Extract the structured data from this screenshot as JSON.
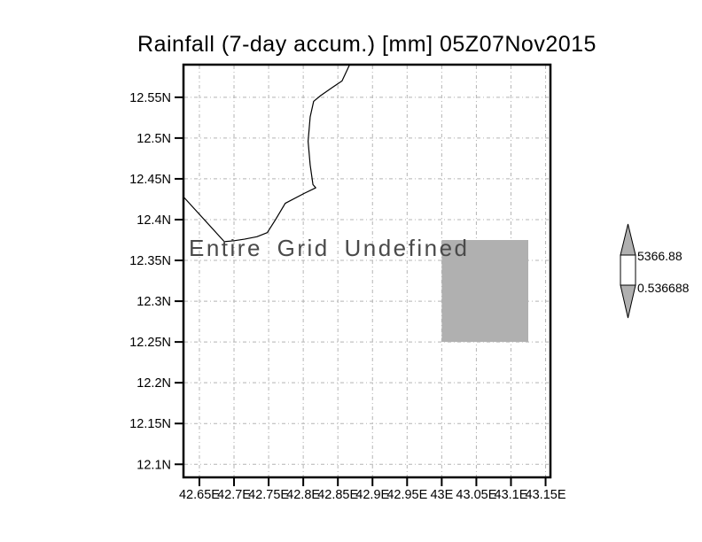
{
  "chart_data": {
    "type": "heatmap",
    "title": "Rainfall (7-day accum.) [mm] 05Z07Nov2015",
    "xlabel": "",
    "ylabel": "",
    "annotation": "Entire Grid Undefined",
    "grid": true,
    "x_tick_labels": [
      "42.65E",
      "42.7E",
      "42.75E",
      "42.8E",
      "42.85E",
      "42.9E",
      "42.95E",
      "43E",
      "43.05E",
      "43.1E",
      "43.15E"
    ],
    "x_tick_values": [
      42.65,
      42.7,
      42.75,
      42.8,
      42.85,
      42.9,
      42.95,
      43.0,
      43.05,
      43.1,
      43.15
    ],
    "y_tick_labels": [
      "12.55N",
      "12.5N",
      "12.45N",
      "12.4N",
      "12.35N",
      "12.3N",
      "12.25N",
      "12.2N",
      "12.15N",
      "12.1N"
    ],
    "y_tick_values": [
      12.55,
      12.5,
      12.45,
      12.4,
      12.35,
      12.3,
      12.25,
      12.2,
      12.15,
      12.1
    ],
    "lon_range": [
      42.627,
      43.157
    ],
    "lat_range": [
      12.084,
      12.59
    ],
    "value_range": [
      0.536688,
      5366.88
    ],
    "shaded_region": {
      "lon": [
        43.0,
        43.125
      ],
      "lat": [
        12.25,
        12.375
      ],
      "color": "#b0b0b0"
    },
    "coastline_lonlat": [
      [
        42.867,
        12.59
      ],
      [
        42.856,
        12.57
      ],
      [
        42.842,
        12.562
      ],
      [
        42.825,
        12.552
      ],
      [
        42.815,
        12.545
      ],
      [
        42.81,
        12.526
      ],
      [
        42.807,
        12.496
      ],
      [
        42.81,
        12.467
      ],
      [
        42.814,
        12.443
      ],
      [
        42.818,
        12.439
      ],
      [
        42.801,
        12.432
      ],
      [
        42.774,
        12.42
      ],
      [
        42.76,
        12.4
      ],
      [
        42.748,
        12.384
      ],
      [
        42.733,
        12.379
      ],
      [
        42.715,
        12.376
      ],
      [
        42.699,
        12.374
      ],
      [
        42.686,
        12.373
      ],
      [
        42.628,
        12.427
      ]
    ],
    "colorbar": {
      "max_label": "5366.88",
      "min_label": "0.536688",
      "band_color": "#ffffff",
      "arrow_color": "#b0b0b0"
    },
    "colors": {
      "axis": "#000000",
      "gridline": "#b4b4b4",
      "coastline": "#000000",
      "annotation_text": "#4a4a4a"
    }
  }
}
